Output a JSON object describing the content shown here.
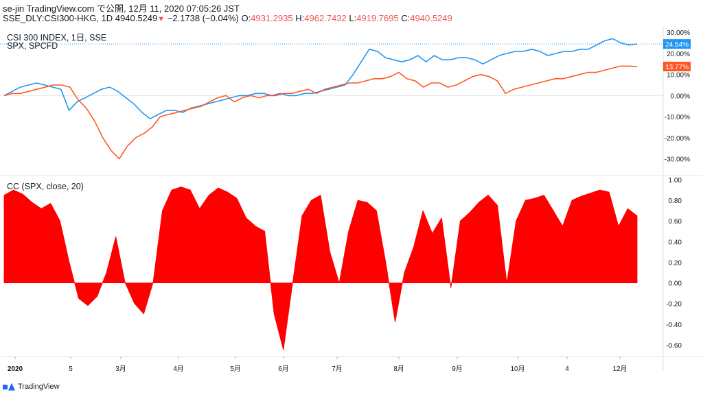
{
  "header": {
    "line1": "se-jin TradingView.com で公開, 12月 11, 2020 07:05:26 JST",
    "symbol": "SSE_DLY:CSI300-HKG, 1D",
    "last": "4940.5249",
    "change": "−2.1738 (−0.04%)",
    "o_label": "O:",
    "o": "4931.2935",
    "h_label": "H:",
    "h": "4962.7432",
    "l_label": "L:",
    "l": "4919.7695",
    "c_label": "C:",
    "c": "4940.5249"
  },
  "main_pane": {
    "label1": "CSI 300 INDEX, 1日, SSE",
    "label2": "SPX, SPCFD"
  },
  "cc_pane": {
    "label": "CC (SPX, close, 20)"
  },
  "footer": {
    "brand": "TradingView"
  },
  "chart_data": [
    {
      "type": "line",
      "y_scale": "percent",
      "ylim": [
        -36,
        33
      ],
      "yticks": [
        "30.00%",
        "20.00%",
        "10.00%",
        "0.00%",
        "-10.00%",
        "-20.00%",
        "-30.00%"
      ],
      "ytick_values": [
        30,
        20,
        10,
        0,
        -10,
        -20,
        -30
      ],
      "xticks": [
        "2020",
        "5",
        "3月",
        "4月",
        "5月",
        "6月",
        "7月",
        "8月",
        "9月",
        "10月",
        "4",
        "12月"
      ],
      "series": [
        {
          "name": "CSI 300 INDEX",
          "color": "#2196f3",
          "last_label": "24.54%",
          "values": [
            0,
            2,
            4,
            5,
            6,
            5,
            4,
            3,
            -7,
            -3,
            -1,
            1,
            3,
            4,
            2,
            -1,
            -4,
            -8,
            -11,
            -9,
            -7,
            -7,
            -8,
            -6,
            -5,
            -4,
            -3,
            -2,
            -1,
            0,
            0,
            1,
            1,
            0,
            1,
            0,
            0,
            1,
            1,
            2,
            3,
            4,
            5,
            10,
            16,
            22,
            21,
            18,
            17,
            16,
            17,
            19,
            16,
            19,
            17,
            17,
            18,
            18,
            17,
            15,
            17,
            19,
            20,
            21,
            21,
            22,
            21,
            19,
            20,
            21,
            21,
            22,
            22,
            24,
            26,
            27,
            25,
            24,
            24.5
          ]
        },
        {
          "name": "SPX",
          "color": "#ff5722",
          "last_label": "13.77%",
          "values": [
            0,
            1,
            1,
            2,
            3,
            4,
            5,
            5,
            4,
            -2,
            -6,
            -12,
            -20,
            -26,
            -30,
            -24,
            -20,
            -18,
            -15,
            -10,
            -9,
            -8,
            -7,
            -6,
            -5,
            -3,
            -1,
            0,
            -3,
            -1,
            0,
            -1,
            0,
            0,
            1,
            1,
            2,
            3,
            1,
            3,
            4,
            5,
            6,
            6,
            7,
            8,
            8,
            9,
            11,
            8,
            7,
            4,
            6,
            6,
            4,
            5,
            7,
            9,
            10,
            9,
            7,
            1,
            3,
            4,
            5,
            6,
            7,
            8,
            8,
            9,
            10,
            11,
            11,
            12,
            13,
            14,
            14,
            13.8
          ]
        }
      ]
    },
    {
      "type": "area",
      "title": "CC (SPX, close, 20)",
      "color": "#ff0000",
      "ylim": [
        -0.7,
        1.0
      ],
      "yticks": [
        "1.00",
        "0.80",
        "0.60",
        "0.40",
        "0.20",
        "0.00",
        "-0.20",
        "-0.40",
        "-0.60"
      ],
      "ytick_values": [
        1.0,
        0.8,
        0.6,
        0.4,
        0.2,
        0.0,
        -0.2,
        -0.4,
        -0.6
      ],
      "values": [
        0.85,
        0.9,
        0.86,
        0.78,
        0.72,
        0.77,
        0.6,
        0.2,
        -0.15,
        -0.22,
        -0.13,
        0.1,
        0.45,
        0.0,
        -0.2,
        -0.3,
        0.0,
        0.7,
        0.9,
        0.93,
        0.9,
        0.72,
        0.85,
        0.92,
        0.88,
        0.82,
        0.63,
        0.55,
        0.5,
        -0.3,
        -0.65,
        0.0,
        0.65,
        0.8,
        0.85,
        0.3,
        0.0,
        0.5,
        0.8,
        0.78,
        0.7,
        0.2,
        -0.38,
        0.1,
        0.35,
        0.7,
        0.48,
        0.63,
        -0.05,
        0.6,
        0.68,
        0.78,
        0.85,
        0.75,
        0.0,
        0.6,
        0.8,
        0.82,
        0.85,
        0.7,
        0.55,
        0.8,
        0.84,
        0.87,
        0.9,
        0.88,
        0.55,
        0.72,
        0.65
      ]
    }
  ]
}
